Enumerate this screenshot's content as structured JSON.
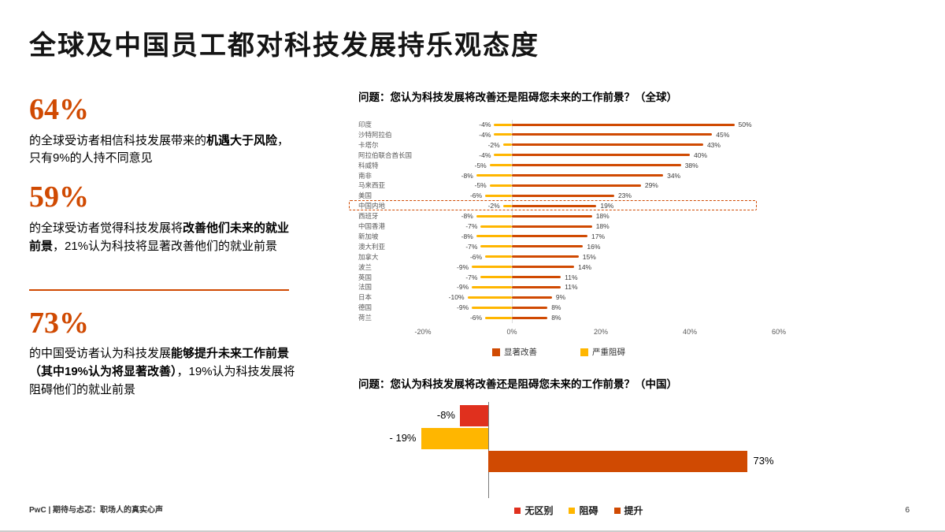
{
  "slide": {
    "title": "全球及中国员工都对科技发展持乐观态度",
    "footer": "PwC | 期待与忐忑：职场人的真实心声",
    "page_number": "6"
  },
  "colors": {
    "accent_orange": "#D04A02",
    "improve_orange": "#D04A02",
    "hinder_yellow": "#FFB600",
    "nodiff_red": "#E0301E"
  },
  "stats": [
    {
      "value": "64%",
      "segments": [
        {
          "text": "的全球受访者相信科技发展带来的",
          "bold": false
        },
        {
          "text": "机遇大于风险",
          "bold": true
        },
        {
          "text": "，只有9%的人持不同意见",
          "bold": false
        }
      ]
    },
    {
      "value": "59%",
      "segments": [
        {
          "text": "的全球受访者觉得科技发展将",
          "bold": false
        },
        {
          "text": "改善他们未来的就业前景",
          "bold": true
        },
        {
          "text": "，21%认为科技将显著改善他们的就业前景",
          "bold": false
        }
      ]
    },
    {
      "value": "73%",
      "segments": [
        {
          "text": "的中国受访者认为科技发展",
          "bold": false
        },
        {
          "text": "能够提升未来工作前景（其中19%认为将显著改善）",
          "bold": true
        },
        {
          "text": "，19%认为科技发展将阻碍他们的就业前景",
          "bold": false
        }
      ]
    }
  ],
  "chart_data": [
    {
      "type": "bar",
      "orientation": "horizontal_diverging",
      "title": "问题：您认为科技发展将改善还是阻碍您未来的工作前景？（全球）",
      "categories": [
        "印度",
        "沙特阿拉伯",
        "卡塔尔",
        "阿拉伯联合酋长国",
        "科威特",
        "南非",
        "马来西亚",
        "美国",
        "中国内地",
        "西班牙",
        "中国香港",
        "新加坡",
        "澳大利亚",
        "加拿大",
        "波兰",
        "英国",
        "法国",
        "日本",
        "德国",
        "荷兰"
      ],
      "series": [
        {
          "name": "显著改善",
          "color": "#D04A02",
          "values": [
            50,
            45,
            43,
            40,
            38,
            34,
            29,
            23,
            19,
            18,
            18,
            17,
            16,
            15,
            14,
            11,
            11,
            9,
            8,
            8
          ]
        },
        {
          "name": "严重阻碍",
          "color": "#FFB600",
          "values": [
            -4,
            -4,
            -2,
            -4,
            -5,
            -8,
            -5,
            -6,
            -2,
            -8,
            -7,
            -8,
            -7,
            -6,
            -9,
            -7,
            -9,
            -10,
            -9,
            -6
          ]
        }
      ],
      "xlim": [
        -25,
        65
      ],
      "x_ticks": [
        "-20%",
        "0%",
        "20%",
        "40%",
        "60%"
      ],
      "x_tick_values": [
        -20,
        0,
        20,
        40,
        60
      ],
      "highlight_category": "中国内地",
      "legend": [
        {
          "label": "显著改善",
          "color": "#D04A02"
        },
        {
          "label": "严重阻碍",
          "color": "#FFB600"
        }
      ]
    },
    {
      "type": "bar",
      "orientation": "horizontal",
      "title": "问题：您认为科技发展将改善还是阻碍您未来的工作前景？（中国）",
      "categories": [
        "无区别",
        "阻碍",
        "提升"
      ],
      "values": [
        -8,
        -19,
        73
      ],
      "labels": [
        "-8%",
        "- 19%",
        "73%"
      ],
      "colors": [
        "#E0301E",
        "#FFB600",
        "#D04A02"
      ],
      "legend": [
        {
          "label": "无区别",
          "color": "#E0301E"
        },
        {
          "label": "阻碍",
          "color": "#FFB600"
        },
        {
          "label": "提升",
          "color": "#D04A02"
        }
      ]
    }
  ]
}
